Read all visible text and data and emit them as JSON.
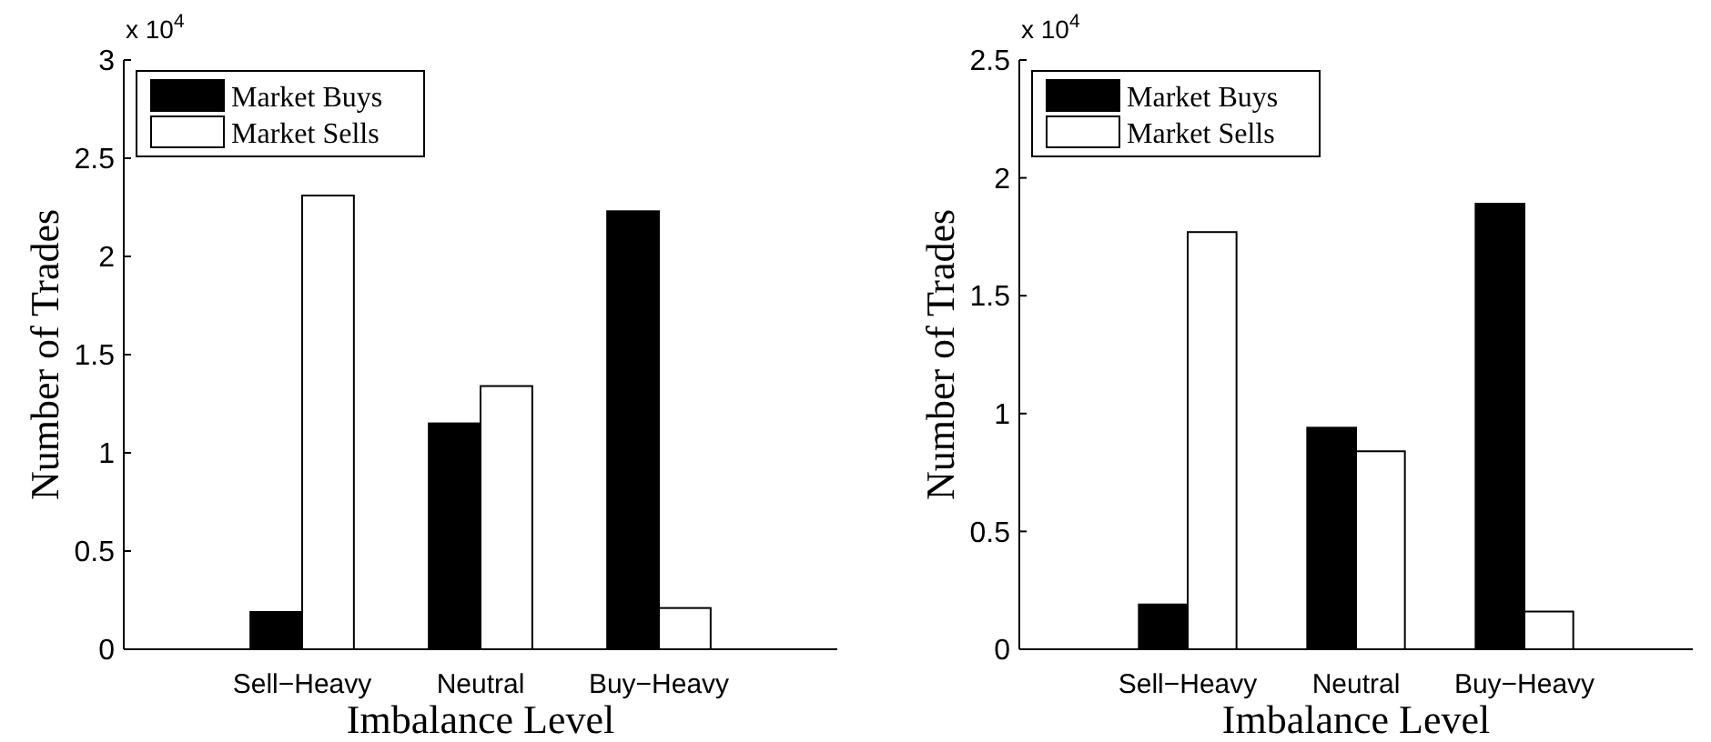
{
  "chart_data": [
    {
      "type": "bar",
      "categories": [
        "Sell−Heavy",
        "Neutral",
        "Buy−Heavy"
      ],
      "xlabel": "Imbalance Level",
      "ylabel": "Number of Trades",
      "annotations": [
        "x 10$^{4}$"
      ],
      "ylim": [
        0,
        3
      ],
      "yticks": [
        0,
        0.5,
        1,
        1.5,
        2,
        2.5,
        3
      ],
      "legend": "top left",
      "series": [
        {
          "name": "Market Buys",
          "color": "#000000",
          "values": [
            0.19,
            1.15,
            2.23
          ]
        },
        {
          "name": "Market Sells",
          "color": "#ffffff",
          "values": [
            2.31,
            1.34,
            0.21
          ]
        }
      ]
    },
    {
      "type": "bar",
      "categories": [
        "Sell−Heavy",
        "Neutral",
        "Buy−Heavy"
      ],
      "xlabel": "Imbalance Level",
      "ylabel": "Number of Trades",
      "annotations": [
        "x 10$^{4}$"
      ],
      "ylim": [
        0,
        2.5
      ],
      "yticks": [
        0,
        0.5,
        1,
        1.5,
        2,
        2.5
      ],
      "legend": "top left",
      "series": [
        {
          "name": "Market Buys",
          "color": "#000000",
          "values": [
            0.19,
            0.94,
            1.89
          ]
        },
        {
          "name": "Market Sells",
          "color": "#ffffff",
          "values": [
            1.77,
            0.84,
            0.16
          ]
        }
      ]
    }
  ]
}
